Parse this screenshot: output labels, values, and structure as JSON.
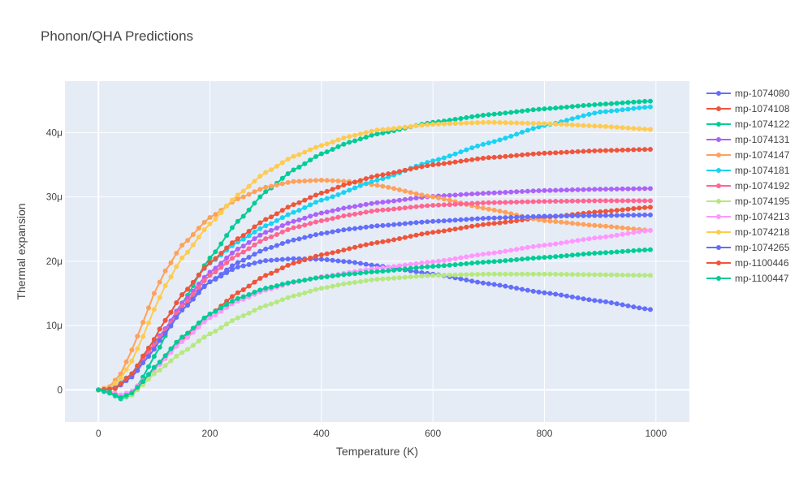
{
  "chart_data": {
    "type": "line",
    "title": "Phonon/QHA Predictions",
    "xlabel": "Temperature (K)",
    "ylabel": "Thermal expansion",
    "xlim": [
      -60,
      1060
    ],
    "ylim": [
      -5e-06,
      4.8e-05
    ],
    "x_ticks": [
      0,
      200,
      400,
      600,
      800,
      1000
    ],
    "x_tick_labels": [
      "0",
      "200",
      "400",
      "600",
      "800",
      "1000"
    ],
    "y_ticks": [
      0,
      1e-05,
      2e-05,
      3e-05,
      4e-05
    ],
    "y_tick_labels": [
      "0",
      "10μ",
      "20μ",
      "30μ",
      "40μ"
    ],
    "grid": true,
    "legend_position": "right",
    "plot_bg": "#E5ECF6",
    "x_start": 0,
    "x_step": 10,
    "x_end": 990,
    "series": [
      {
        "name": "mp-1074080",
        "color": "#636EFA",
        "x_anchor": [
          0,
          30,
          60,
          90,
          120,
          150,
          200,
          250,
          300,
          350,
          400,
          450,
          500,
          600,
          700,
          800,
          900,
          990
        ],
        "y_anchor": [
          0,
          3e-07,
          2.5e-06,
          6e-06,
          9.5e-06,
          1.3e-05,
          1.68e-05,
          1.91e-05,
          2.01e-05,
          2.04e-05,
          2.03e-05,
          1.99e-05,
          1.93e-05,
          1.8e-05,
          1.65e-05,
          1.51e-05,
          1.38e-05,
          1.25e-05
        ]
      },
      {
        "name": "mp-1074108",
        "color": "#EF553B",
        "x_anchor": [
          0,
          20,
          40,
          60,
          80,
          100,
          150,
          200,
          250,
          300,
          350,
          400,
          500,
          600,
          700,
          800,
          900,
          990
        ],
        "y_anchor": [
          0,
          -5e-07,
          -1.2e-06,
          -5e-07,
          1.2e-06,
          3.2e-06,
          7.8e-06,
          1.17e-05,
          1.51e-05,
          1.78e-05,
          1.97e-05,
          2.1e-05,
          2.29e-05,
          2.45e-05,
          2.58e-05,
          2.68e-05,
          2.77e-05,
          2.84e-05
        ]
      },
      {
        "name": "mp-1074122",
        "color": "#00CC96",
        "x_anchor": [
          0,
          20,
          40,
          60,
          80,
          100,
          150,
          200,
          250,
          300,
          350,
          400,
          450,
          500,
          600,
          700,
          800,
          900,
          990
        ],
        "y_anchor": [
          0,
          -5e-07,
          -1.4e-06,
          -8e-07,
          2e-06,
          5.2e-06,
          1.35e-05,
          2.05e-05,
          2.62e-05,
          3.08e-05,
          3.42e-05,
          3.67e-05,
          3.85e-05,
          3.98e-05,
          4.16e-05,
          4.28e-05,
          4.37e-05,
          4.44e-05,
          4.49e-05
        ]
      },
      {
        "name": "mp-1074131",
        "color": "#AB63FA",
        "x_anchor": [
          0,
          30,
          60,
          90,
          120,
          150,
          200,
          250,
          300,
          350,
          400,
          450,
          500,
          600,
          700,
          800,
          900,
          990
        ],
        "y_anchor": [
          0,
          2e-07,
          2.2e-06,
          5.8e-06,
          9.5e-06,
          1.35e-05,
          1.83e-05,
          2.19e-05,
          2.45e-05,
          2.62e-05,
          2.75e-05,
          2.84e-05,
          2.91e-05,
          3.01e-05,
          3.06e-05,
          3.1e-05,
          3.12e-05,
          3.13e-05
        ]
      },
      {
        "name": "mp-1074147",
        "color": "#FFA15A",
        "x_anchor": [
          0,
          20,
          40,
          60,
          80,
          100,
          120,
          150,
          200,
          250,
          300,
          350,
          400,
          450,
          500,
          600,
          700,
          800,
          900,
          990
        ],
        "y_anchor": [
          0,
          5e-07,
          2.5e-06,
          6.2e-06,
          1.05e-05,
          1.5e-05,
          1.85e-05,
          2.25e-05,
          2.68e-05,
          2.97e-05,
          3.15e-05,
          3.24e-05,
          3.26e-05,
          3.24e-05,
          3.18e-05,
          3e-05,
          2.81e-05,
          2.63e-05,
          2.55e-05,
          2.48e-05
        ]
      },
      {
        "name": "mp-1074181",
        "color": "#19D3F3",
        "x_anchor": [
          0,
          30,
          60,
          90,
          120,
          150,
          200,
          250,
          300,
          350,
          400,
          500,
          600,
          700,
          800,
          900,
          990
        ],
        "y_anchor": [
          0,
          4e-07,
          2.5e-06,
          6.5e-06,
          1.08e-05,
          1.48e-05,
          1.97e-05,
          2.3e-05,
          2.55e-05,
          2.76e-05,
          2.95e-05,
          3.26e-05,
          3.56e-05,
          3.84e-05,
          4.11e-05,
          4.32e-05,
          4.4e-05
        ]
      },
      {
        "name": "mp-1074192",
        "color": "#FF6692",
        "x_anchor": [
          0,
          30,
          60,
          90,
          120,
          150,
          200,
          250,
          300,
          350,
          400,
          450,
          500,
          600,
          700,
          800,
          900,
          990
        ],
        "y_anchor": [
          0,
          2e-07,
          2.2e-06,
          5.8e-06,
          9.2e-06,
          1.3e-05,
          1.78e-05,
          2.1e-05,
          2.35e-05,
          2.52e-05,
          2.63e-05,
          2.72e-05,
          2.79e-05,
          2.87e-05,
          2.91e-05,
          2.93e-05,
          2.94e-05,
          2.94e-05
        ]
      },
      {
        "name": "mp-1074195",
        "color": "#B6E880",
        "x_anchor": [
          0,
          20,
          40,
          60,
          80,
          100,
          150,
          200,
          250,
          300,
          350,
          400,
          450,
          500,
          600,
          700,
          800,
          900,
          990
        ],
        "y_anchor": [
          0,
          -4e-07,
          -1.2e-06,
          -8e-07,
          8e-07,
          2.5e-06,
          5.8e-06,
          8.7e-06,
          1.12e-05,
          1.31e-05,
          1.46e-05,
          1.58e-05,
          1.66e-05,
          1.72e-05,
          1.78e-05,
          1.8e-05,
          1.8e-05,
          1.79e-05,
          1.78e-05
        ]
      },
      {
        "name": "mp-1074213",
        "color": "#FF97FF",
        "x_anchor": [
          0,
          20,
          40,
          60,
          80,
          100,
          150,
          200,
          250,
          300,
          350,
          400,
          500,
          600,
          700,
          800,
          900,
          990
        ],
        "y_anchor": [
          0,
          -2e-07,
          -8e-07,
          -2e-07,
          1.4e-06,
          3.2e-06,
          7.5e-06,
          1.12e-05,
          1.38e-05,
          1.55e-05,
          1.67e-05,
          1.76e-05,
          1.89e-05,
          1.99e-05,
          2.12e-05,
          2.25e-05,
          2.37e-05,
          2.48e-05
        ]
      },
      {
        "name": "mp-1074218",
        "color": "#FECB52",
        "x_anchor": [
          0,
          20,
          40,
          60,
          80,
          100,
          120,
          150,
          200,
          250,
          300,
          350,
          400,
          450,
          500,
          600,
          700,
          800,
          900,
          990
        ],
        "y_anchor": [
          0,
          3e-07,
          1.8e-06,
          4.5e-06,
          8.3e-06,
          1.25e-05,
          1.62e-05,
          2.05e-05,
          2.58e-05,
          3.03e-05,
          3.38e-05,
          3.63e-05,
          3.8e-05,
          3.94e-05,
          4.04e-05,
          4.13e-05,
          4.16e-05,
          4.14e-05,
          4.1e-05,
          4.05e-05
        ]
      },
      {
        "name": "mp-1074265",
        "color": "#636EFA",
        "x_anchor": [
          0,
          30,
          60,
          90,
          120,
          150,
          200,
          250,
          300,
          350,
          400,
          450,
          500,
          600,
          700,
          800,
          900,
          990
        ],
        "y_anchor": [
          0,
          2e-07,
          2e-06,
          5.2e-06,
          8.8e-06,
          1.24e-05,
          1.68e-05,
          1.98e-05,
          2.19e-05,
          2.33e-05,
          2.43e-05,
          2.5e-05,
          2.55e-05,
          2.62e-05,
          2.67e-05,
          2.7e-05,
          2.71e-05,
          2.72e-05
        ]
      },
      {
        "name": "mp-1100446",
        "color": "#EF553B",
        "x_anchor": [
          0,
          30,
          60,
          90,
          120,
          150,
          200,
          250,
          300,
          350,
          400,
          450,
          500,
          600,
          700,
          800,
          900,
          990
        ],
        "y_anchor": [
          0,
          2e-07,
          2.5e-06,
          6.5e-06,
          1.08e-05,
          1.48e-05,
          1.98e-05,
          2.35e-05,
          2.65e-05,
          2.88e-05,
          3.06e-05,
          3.21e-05,
          3.33e-05,
          3.5e-05,
          3.61e-05,
          3.68e-05,
          3.72e-05,
          3.74e-05
        ]
      },
      {
        "name": "mp-1100447",
        "color": "#00CC96",
        "x_anchor": [
          0,
          20,
          40,
          60,
          80,
          100,
          150,
          200,
          250,
          300,
          350,
          400,
          450,
          500,
          600,
          700,
          800,
          900,
          990
        ],
        "y_anchor": [
          0,
          -4e-07,
          -1.2e-06,
          -5e-07,
          1.3e-06,
          3.5e-06,
          8.2e-06,
          1.18e-05,
          1.42e-05,
          1.58e-05,
          1.68e-05,
          1.75e-05,
          1.8e-05,
          1.84e-05,
          1.92e-05,
          1.99e-05,
          2.06e-05,
          2.13e-05,
          2.18e-05
        ]
      }
    ]
  }
}
